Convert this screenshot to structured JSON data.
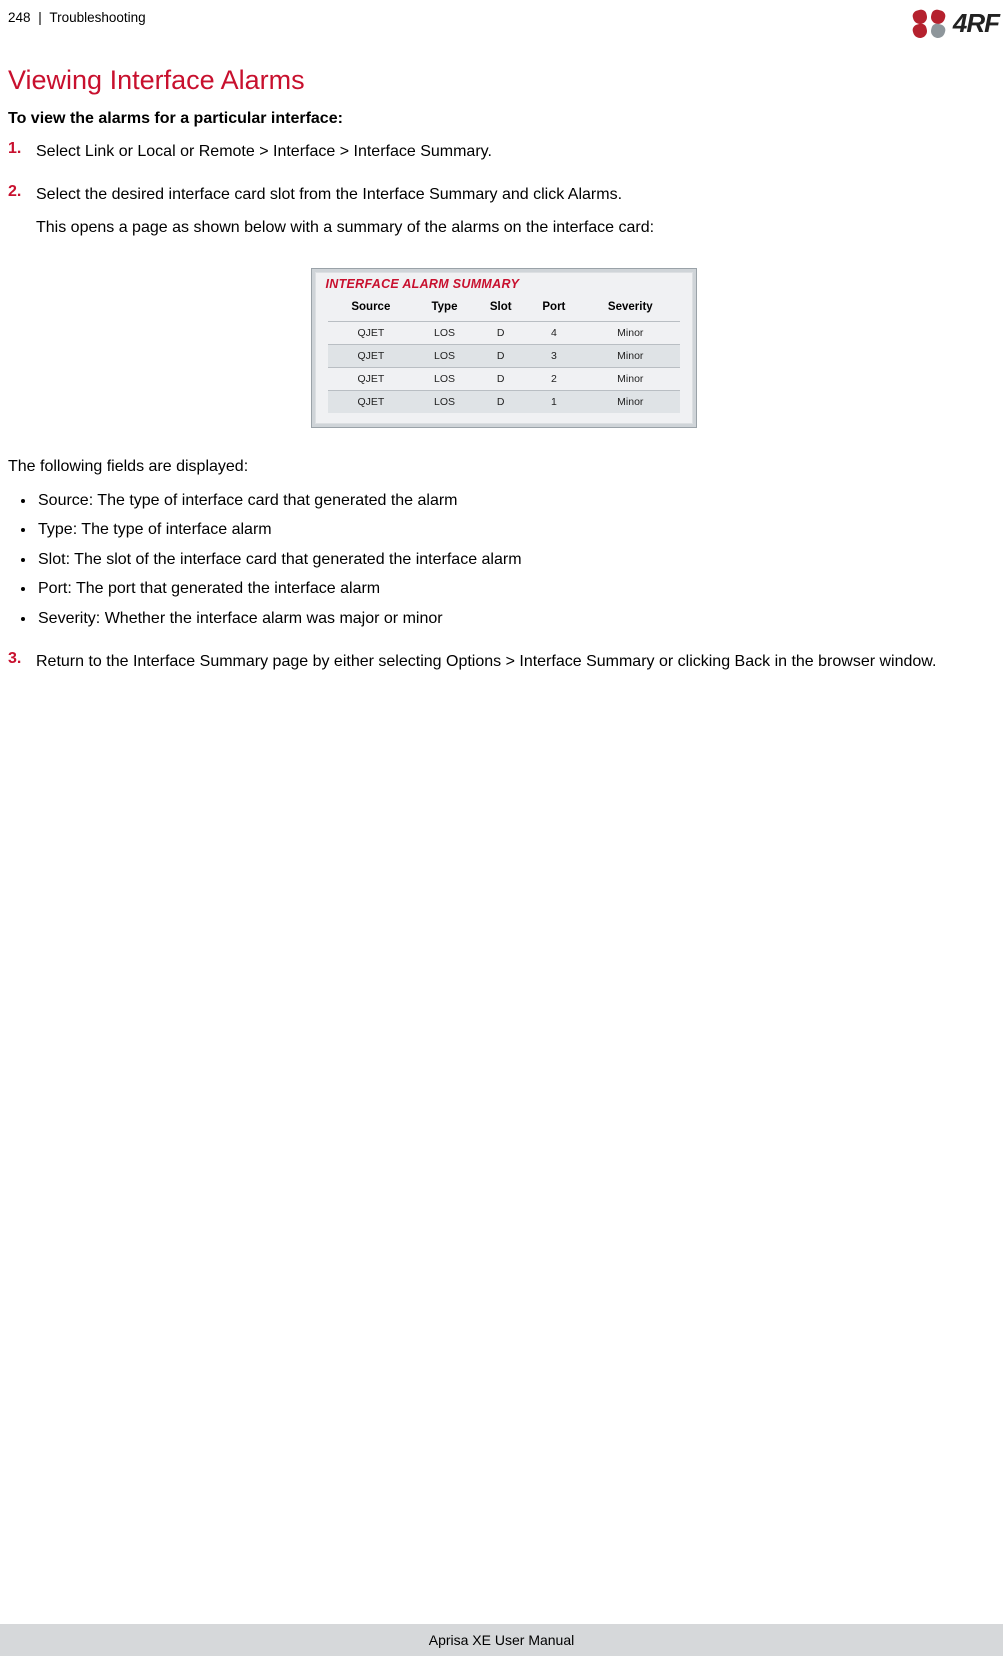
{
  "colors": {
    "accent": "#c8102e",
    "step_num": "#c8102e",
    "text": "#000000",
    "logo_red": "#b5212e",
    "logo_grey": "#8e969b",
    "card_bg": "#cfd4d8",
    "card_inner_bg": "#f0f1f3",
    "card_border": "#9aa2a8",
    "row_alt": "#dfe3e6",
    "row_border": "#b9bec3",
    "footer_bg": "#d6d8da"
  },
  "header": {
    "page_num": "248",
    "separator": "|",
    "section": "Troubleshooting",
    "logo_text": "4RF"
  },
  "title": "Viewing Interface Alarms",
  "subhead": "To view the alarms for a particular interface:",
  "steps": {
    "s1": {
      "num": "1.",
      "text": "Select Link or Local or Remote > Interface > Interface Summary."
    },
    "s2": {
      "num": "2.",
      "text": "Select the desired interface card slot from the Interface Summary and click Alarms.",
      "text2": "This opens a page as shown below with a summary of the alarms on the interface card:"
    },
    "s3": {
      "num": "3.",
      "text": "Return to the Interface Summary page by either selecting Options > Interface Summary or clicking Back in the browser window."
    }
  },
  "alarm_card": {
    "title": "INTERFACE ALARM SUMMARY",
    "columns": [
      "Source",
      "Type",
      "Slot",
      "Port",
      "Severity"
    ],
    "rows": [
      [
        "QJET",
        "LOS",
        "D",
        "4",
        "Minor"
      ],
      [
        "QJET",
        "LOS",
        "D",
        "3",
        "Minor"
      ],
      [
        "QJET",
        "LOS",
        "D",
        "2",
        "Minor"
      ],
      [
        "QJET",
        "LOS",
        "D",
        "1",
        "Minor"
      ]
    ]
  },
  "fields_intro": "The following fields are displayed:",
  "fields": [
    "Source: The type of interface card that generated the alarm",
    "Type: The type of interface alarm",
    "Slot: The slot of the interface card that generated the interface alarm",
    "Port: The port that generated the interface alarm",
    "Severity: Whether the interface alarm was major or minor"
  ],
  "footer": "Aprisa XE User Manual"
}
